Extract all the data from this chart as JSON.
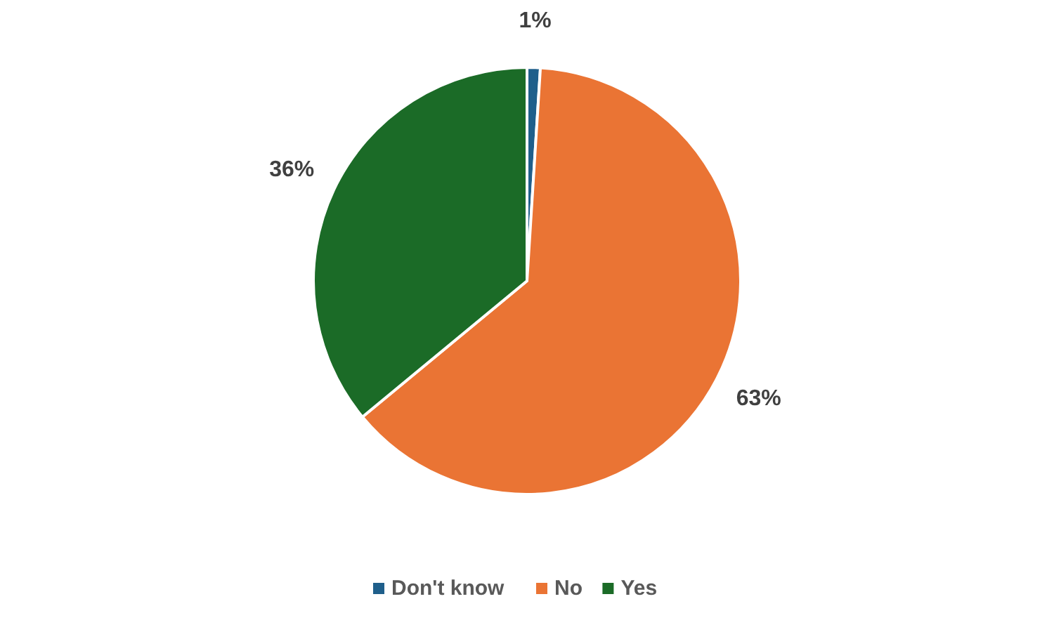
{
  "chart_data": {
    "type": "pie",
    "categories": [
      "Don't know",
      "No",
      "Yes"
    ],
    "values": [
      1,
      63,
      36
    ],
    "colors": [
      "#1f5f8b",
      "#ea7434",
      "#1b6b27"
    ],
    "value_labels": [
      "1%",
      "63%",
      "36%"
    ],
    "legend": "bottom"
  }
}
